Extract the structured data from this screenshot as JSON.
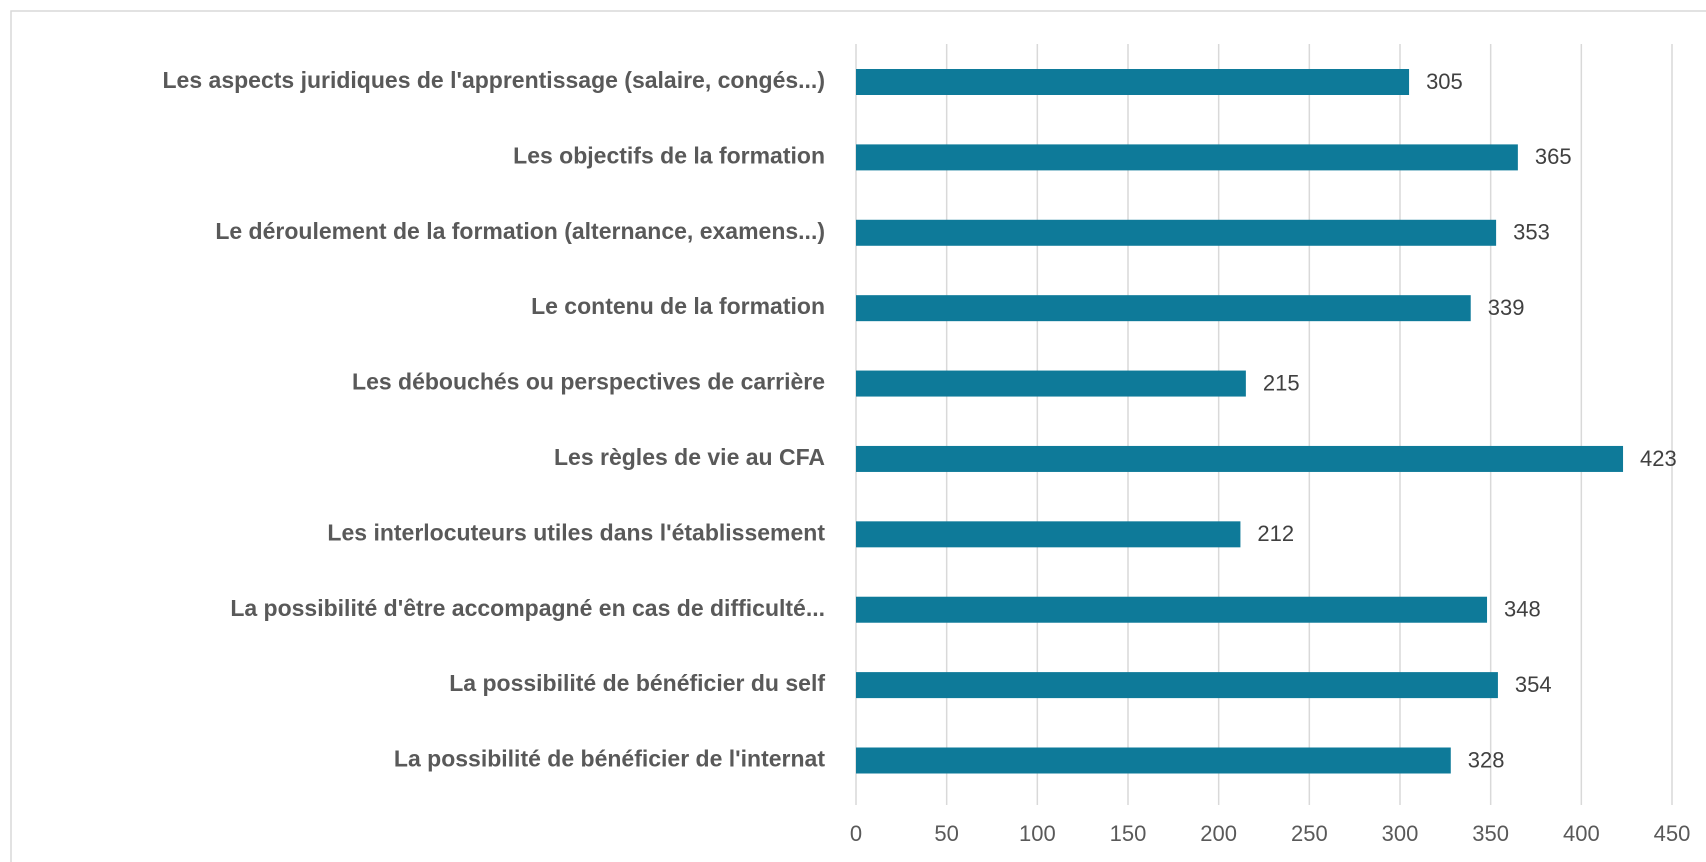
{
  "chart_data": {
    "type": "bar",
    "orientation": "horizontal",
    "categories": [
      "Les aspects juridiques de l'apprentissage (salaire, congés...)",
      "Les objectifs de la formation",
      "Le déroulement de la formation (alternance, examens...)",
      "Le contenu de la formation",
      "Les débouchés ou perspectives de carrière",
      "Les règles de vie au CFA",
      "Les interlocuteurs utiles dans l'établissement",
      "La possibilité d'être accompagné en cas de difficulté...",
      "La possibilité de bénéficier du self",
      "La possibilité de bénéficier de l'internat"
    ],
    "values": [
      305,
      365,
      353,
      339,
      215,
      423,
      212,
      348,
      354,
      328
    ],
    "color": "#0e7a99",
    "xlim": [
      0,
      450
    ],
    "xticks": [
      0,
      50,
      100,
      150,
      200,
      250,
      300,
      350,
      400,
      450
    ],
    "grid": true
  }
}
